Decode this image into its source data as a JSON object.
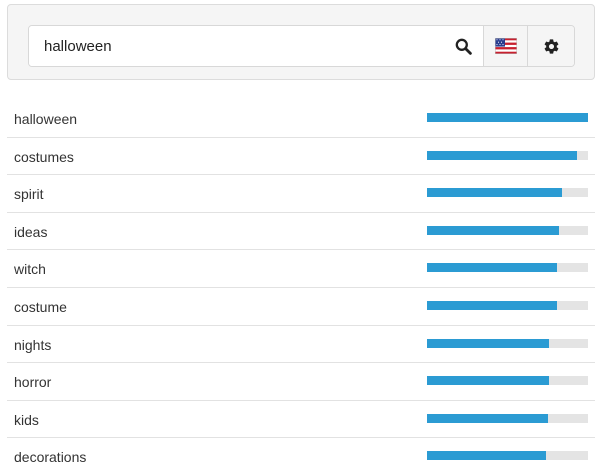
{
  "search": {
    "value": "halloween",
    "search_icon": "search-icon",
    "flag_icon": "us-flag-icon",
    "settings_icon": "gear-icon"
  },
  "colors": {
    "bar_fill": "#2b9bd3",
    "bar_track": "#e4e4e4",
    "panel_bg": "#f5f5f5"
  },
  "results": [
    {
      "label": "halloween",
      "score": 1.0
    },
    {
      "label": "costumes",
      "score": 0.93
    },
    {
      "label": "spirit",
      "score": 0.84
    },
    {
      "label": "ideas",
      "score": 0.82
    },
    {
      "label": "witch",
      "score": 0.81
    },
    {
      "label": "costume",
      "score": 0.81
    },
    {
      "label": "nights",
      "score": 0.76
    },
    {
      "label": "horror",
      "score": 0.76
    },
    {
      "label": "kids",
      "score": 0.75
    },
    {
      "label": "decorations",
      "score": 0.74
    }
  ]
}
